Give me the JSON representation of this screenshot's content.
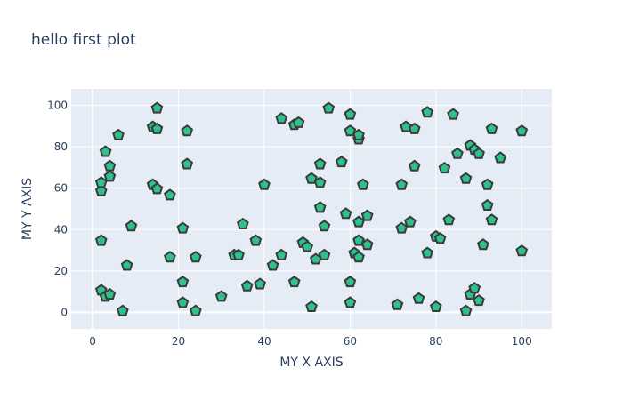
{
  "chart_data": {
    "type": "scatter",
    "title": "hello first plot",
    "xlabel": "MY X AXIS",
    "ylabel": "MY Y AXIS",
    "xlim": [
      -5,
      107
    ],
    "ylim": [
      -8,
      108
    ],
    "xticks": [
      0,
      20,
      40,
      60,
      80,
      100
    ],
    "yticks": [
      0,
      20,
      40,
      60,
      80,
      100
    ],
    "grid": true,
    "marker": "pentagon",
    "colors": {
      "plot_bg": "#e5ecf6",
      "grid": "#ffffff",
      "marker_fill": "#2ec18d",
      "marker_edge": "#3a3a3a",
      "text": "#2a3f5f"
    },
    "points": [
      {
        "x": 2,
        "y": 11
      },
      {
        "x": 2,
        "y": 35
      },
      {
        "x": 2,
        "y": 59
      },
      {
        "x": 2,
        "y": 63
      },
      {
        "x": 3,
        "y": 8
      },
      {
        "x": 3,
        "y": 78
      },
      {
        "x": 4,
        "y": 9
      },
      {
        "x": 4,
        "y": 66
      },
      {
        "x": 4,
        "y": 71
      },
      {
        "x": 6,
        "y": 86
      },
      {
        "x": 7,
        "y": 1
      },
      {
        "x": 8,
        "y": 23
      },
      {
        "x": 9,
        "y": 42
      },
      {
        "x": 14,
        "y": 62
      },
      {
        "x": 14,
        "y": 90
      },
      {
        "x": 15,
        "y": 60
      },
      {
        "x": 15,
        "y": 89
      },
      {
        "x": 15,
        "y": 99
      },
      {
        "x": 18,
        "y": 27
      },
      {
        "x": 18,
        "y": 57
      },
      {
        "x": 21,
        "y": 5
      },
      {
        "x": 21,
        "y": 15
      },
      {
        "x": 21,
        "y": 41
      },
      {
        "x": 22,
        "y": 72
      },
      {
        "x": 22,
        "y": 88
      },
      {
        "x": 24,
        "y": 1
      },
      {
        "x": 24,
        "y": 27
      },
      {
        "x": 30,
        "y": 8
      },
      {
        "x": 33,
        "y": 28
      },
      {
        "x": 34,
        "y": 28
      },
      {
        "x": 35,
        "y": 43
      },
      {
        "x": 36,
        "y": 13
      },
      {
        "x": 38,
        "y": 35
      },
      {
        "x": 39,
        "y": 14
      },
      {
        "x": 40,
        "y": 62
      },
      {
        "x": 42,
        "y": 23
      },
      {
        "x": 44,
        "y": 28
      },
      {
        "x": 44,
        "y": 94
      },
      {
        "x": 47,
        "y": 15
      },
      {
        "x": 47,
        "y": 91
      },
      {
        "x": 48,
        "y": 92
      },
      {
        "x": 49,
        "y": 34
      },
      {
        "x": 50,
        "y": 32
      },
      {
        "x": 51,
        "y": 3
      },
      {
        "x": 51,
        "y": 65
      },
      {
        "x": 52,
        "y": 26
      },
      {
        "x": 53,
        "y": 51
      },
      {
        "x": 53,
        "y": 63
      },
      {
        "x": 53,
        "y": 72
      },
      {
        "x": 54,
        "y": 28
      },
      {
        "x": 54,
        "y": 42
      },
      {
        "x": 55,
        "y": 99
      },
      {
        "x": 58,
        "y": 73
      },
      {
        "x": 59,
        "y": 48
      },
      {
        "x": 60,
        "y": 5
      },
      {
        "x": 60,
        "y": 15
      },
      {
        "x": 60,
        "y": 88
      },
      {
        "x": 60,
        "y": 96
      },
      {
        "x": 61,
        "y": 29
      },
      {
        "x": 62,
        "y": 27
      },
      {
        "x": 62,
        "y": 35
      },
      {
        "x": 62,
        "y": 44
      },
      {
        "x": 62,
        "y": 84
      },
      {
        "x": 62,
        "y": 86
      },
      {
        "x": 63,
        "y": 62
      },
      {
        "x": 64,
        "y": 33
      },
      {
        "x": 64,
        "y": 47
      },
      {
        "x": 71,
        "y": 4
      },
      {
        "x": 72,
        "y": 41
      },
      {
        "x": 72,
        "y": 62
      },
      {
        "x": 73,
        "y": 90
      },
      {
        "x": 74,
        "y": 44
      },
      {
        "x": 75,
        "y": 71
      },
      {
        "x": 75,
        "y": 89
      },
      {
        "x": 76,
        "y": 7
      },
      {
        "x": 78,
        "y": 29
      },
      {
        "x": 78,
        "y": 97
      },
      {
        "x": 80,
        "y": 3
      },
      {
        "x": 80,
        "y": 37
      },
      {
        "x": 81,
        "y": 36
      },
      {
        "x": 82,
        "y": 70
      },
      {
        "x": 83,
        "y": 45
      },
      {
        "x": 84,
        "y": 96
      },
      {
        "x": 85,
        "y": 77
      },
      {
        "x": 87,
        "y": 1
      },
      {
        "x": 87,
        "y": 65
      },
      {
        "x": 88,
        "y": 9
      },
      {
        "x": 88,
        "y": 81
      },
      {
        "x": 89,
        "y": 12
      },
      {
        "x": 89,
        "y": 79
      },
      {
        "x": 90,
        "y": 6
      },
      {
        "x": 90,
        "y": 77
      },
      {
        "x": 91,
        "y": 33
      },
      {
        "x": 92,
        "y": 52
      },
      {
        "x": 92,
        "y": 62
      },
      {
        "x": 93,
        "y": 45
      },
      {
        "x": 93,
        "y": 89
      },
      {
        "x": 95,
        "y": 75
      },
      {
        "x": 100,
        "y": 30
      },
      {
        "x": 100,
        "y": 88
      }
    ]
  }
}
